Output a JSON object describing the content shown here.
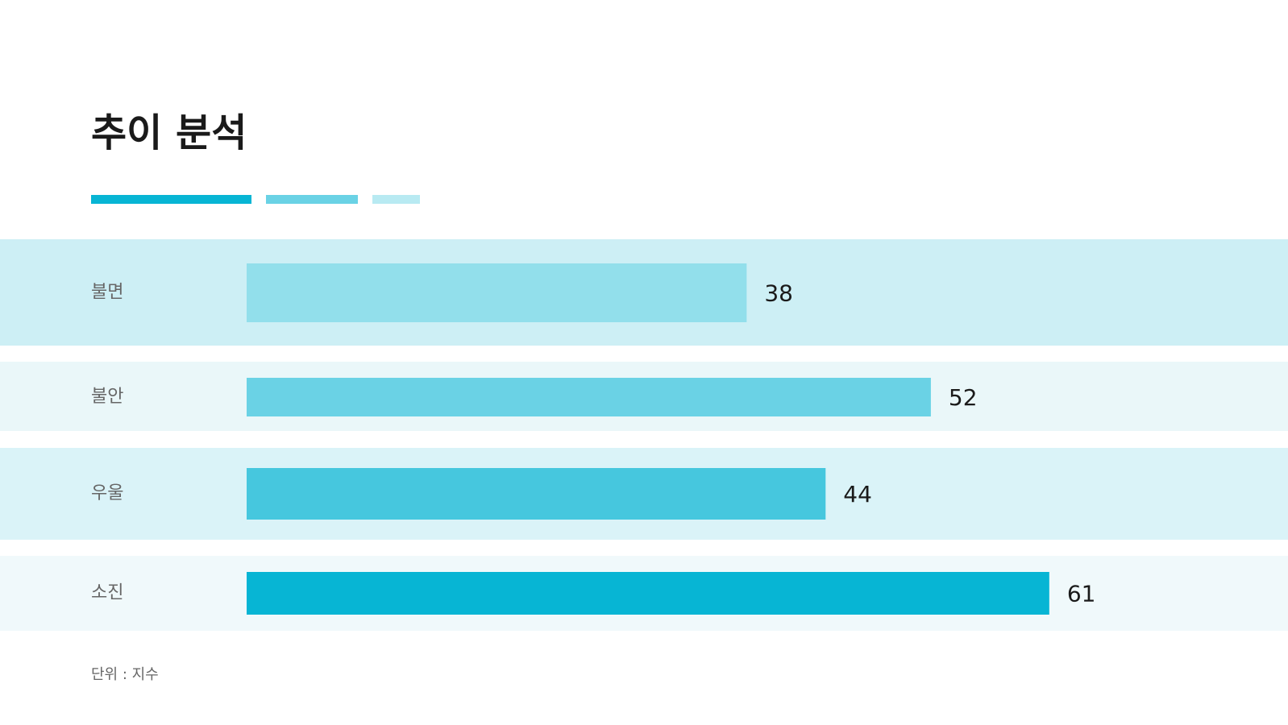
{
  "chart_data": {
    "type": "bar",
    "orientation": "horizontal",
    "title": "추이 분석",
    "categories": [
      "불면",
      "불안",
      "우울",
      "소진"
    ],
    "values": [
      38,
      52,
      44,
      61
    ],
    "colors": [
      "#92dfeb",
      "#6ad2e5",
      "#46c7de",
      "#07b5d4"
    ],
    "xlim": [
      0,
      80
    ],
    "footnote": "단위 : 지수"
  }
}
